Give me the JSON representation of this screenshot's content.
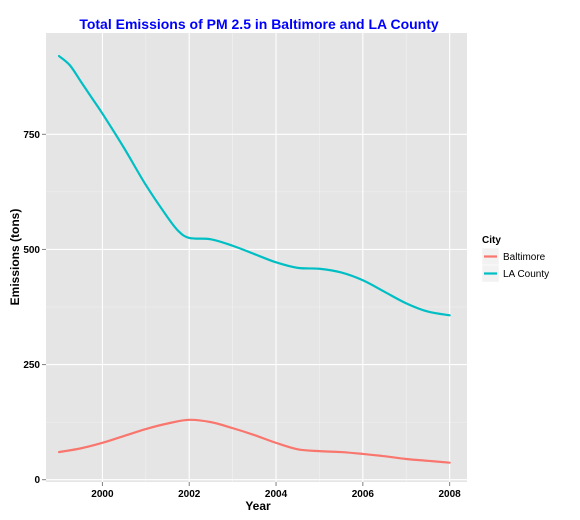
{
  "chart_data": {
    "type": "line",
    "title": "Total Emissions of PM 2.5 in Baltimore and LA County",
    "xlabel": "Year",
    "ylabel": "Emissions (tons)",
    "xlim": [
      1998.7,
      2008.4
    ],
    "ylim": [
      -5,
      970
    ],
    "x_ticks": [
      2000,
      2002,
      2004,
      2006,
      2008
    ],
    "y_ticks": [
      0,
      250,
      500,
      750
    ],
    "grid": true,
    "legend_title": "City",
    "legend_position": "right",
    "series": [
      {
        "name": "Baltimore",
        "color": "#F8766D",
        "x": [
          1999,
          1999.5,
          2000,
          2000.5,
          2001,
          2001.5,
          2002,
          2002.5,
          2003,
          2003.5,
          2004,
          2004.5,
          2005,
          2005.5,
          2006,
          2006.5,
          2007,
          2007.5,
          2008
        ],
        "y": [
          60,
          68,
          80,
          95,
          110,
          122,
          130,
          125,
          112,
          97,
          80,
          66,
          62,
          60,
          56,
          51,
          45,
          41,
          37
        ]
      },
      {
        "name": "LA County",
        "color": "#00BFC4",
        "x": [
          1999,
          1999.25,
          1999.5,
          1999.75,
          2000,
          2000.5,
          2001,
          2001.5,
          2001.75,
          2002,
          2002.5,
          2003,
          2003.5,
          2004,
          2004.5,
          2005,
          2005.5,
          2006,
          2006.5,
          2007,
          2007.5,
          2008
        ],
        "y": [
          920,
          900,
          865,
          830,
          795,
          720,
          640,
          570,
          540,
          525,
          522,
          508,
          490,
          472,
          460,
          458,
          450,
          433,
          408,
          383,
          365,
          357
        ]
      }
    ]
  }
}
